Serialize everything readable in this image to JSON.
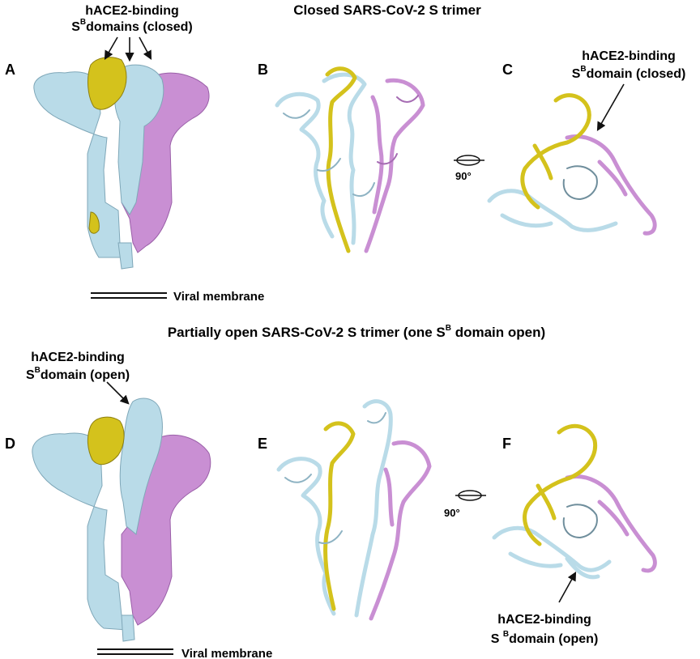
{
  "figure": {
    "top_title": "Closed SARS-CoV-2 S trimer",
    "bottom_title_prefix": "Partially open SARS-CoV-2 S trimer (one S",
    "bottom_title_sup": "B",
    "bottom_title_suffix": " domain open)",
    "colors": {
      "chain_yellow": "#d4c21c",
      "chain_blue": "#b9dbe8",
      "chain_purple": "#c98fd3",
      "label": "#111111"
    },
    "panels": [
      {
        "letter": "A",
        "view": "density-map",
        "state": "closed"
      },
      {
        "letter": "B",
        "view": "ribbon",
        "state": "closed"
      },
      {
        "letter": "C",
        "view": "top-down",
        "state": "closed"
      },
      {
        "letter": "D",
        "view": "density-map",
        "state": "partially-open"
      },
      {
        "letter": "E",
        "view": "ribbon",
        "state": "partially-open"
      },
      {
        "letter": "F",
        "view": "top-down",
        "state": "partially-open"
      }
    ],
    "rotation_label": "90°",
    "annotations": {
      "a_line1": "hACE2-binding",
      "a_line2_prefix": "S",
      "a_line2_sup": "B",
      "a_line2_suffix": "domains (closed)",
      "c_line1": "hACE2-binding",
      "c_line2_prefix": "S",
      "c_line2_sup": "B",
      "c_line2_suffix": "domain (closed)",
      "d_line1": "hACE2-binding",
      "d_line2_prefix": "S",
      "d_line2_sup": "B",
      "d_line2_suffix": "domain (open)",
      "f_line1": "hACE2-binding",
      "f_line2_prefix": "S ",
      "f_line2_sup": "B",
      "f_line2_suffix": "domain (open)"
    },
    "membrane_label": "Viral membrane"
  }
}
